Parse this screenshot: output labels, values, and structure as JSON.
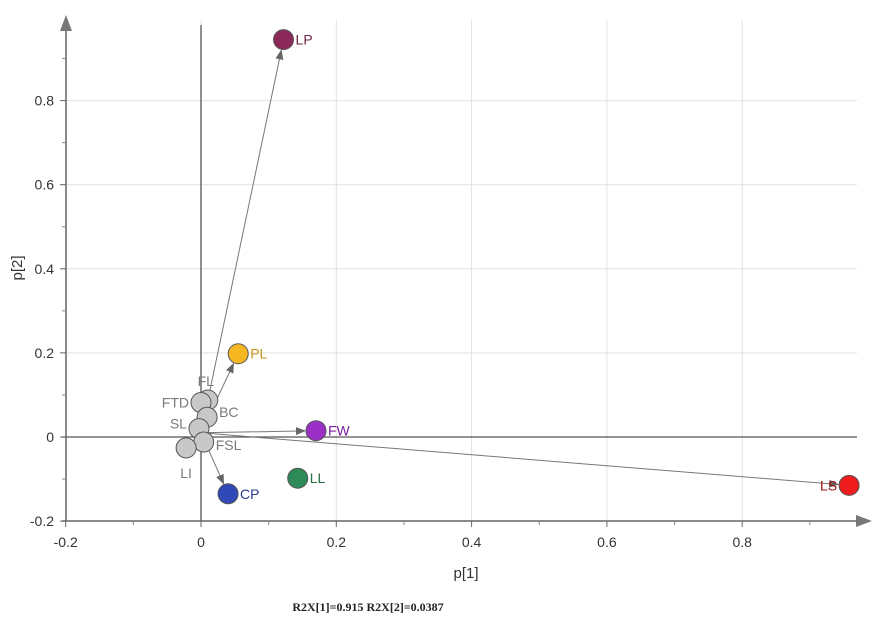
{
  "chart_data": {
    "type": "scatter",
    "title": "",
    "xlabel": "p[1]",
    "ylabel": "p[2]",
    "xlim": [
      -0.2,
      0.97
    ],
    "ylim": [
      -0.2,
      0.98
    ],
    "x_ticks": [
      -0.2,
      0,
      0.2,
      0.4,
      0.6,
      0.8
    ],
    "x_tick_labels": [
      "-0.2",
      "0",
      "0.2",
      "0.4",
      "0.6",
      "0.8"
    ],
    "y_ticks": [
      -0.2,
      0,
      0.2,
      0.4,
      0.6,
      0.8
    ],
    "y_tick_labels": [
      "-0.2",
      "0",
      "0.2",
      "0.4",
      "0.6",
      "0.8"
    ],
    "grid": true,
    "points": [
      {
        "label": "LP",
        "x": 0.122,
        "y": 0.945,
        "color": "#8b2a5a",
        "label_color": "#6b2244",
        "arrow": true
      },
      {
        "label": "PL",
        "x": 0.055,
        "y": 0.198,
        "color": "#f5b820",
        "label_color": "#c8941a",
        "arrow": true
      },
      {
        "label": "FL",
        "x": 0.01,
        "y": 0.088,
        "color": "#c8c8c8",
        "label_color": "#7a7a7a",
        "arrow": false
      },
      {
        "label": "FTD",
        "x": 0.0,
        "y": 0.082,
        "color": "#c8c8c8",
        "label_color": "#7a7a7a",
        "arrow": false
      },
      {
        "label": "BC",
        "x": 0.009,
        "y": 0.047,
        "color": "#c8c8c8",
        "label_color": "#7a7a7a",
        "arrow": false
      },
      {
        "label": "SL",
        "x": -0.003,
        "y": 0.02,
        "color": "#c8c8c8",
        "label_color": "#7a7a7a",
        "arrow": false
      },
      {
        "label": "FSL",
        "x": 0.004,
        "y": -0.012,
        "color": "#c8c8c8",
        "label_color": "#7a7a7a",
        "arrow": false
      },
      {
        "label": "LI",
        "x": -0.022,
        "y": -0.026,
        "color": "#c8c8c8",
        "label_color": "#7a7a7a",
        "arrow": false
      },
      {
        "label": "FW",
        "x": 0.17,
        "y": 0.015,
        "color": "#9b30c8",
        "label_color": "#7a1f9e",
        "arrow": true
      },
      {
        "label": "LL",
        "x": 0.143,
        "y": -0.098,
        "color": "#2e8b57",
        "label_color": "#2a6e48",
        "arrow": false
      },
      {
        "label": "CP",
        "x": 0.04,
        "y": -0.135,
        "color": "#3048b8",
        "label_color": "#2a3c8e",
        "arrow": true
      },
      {
        "label": "LS",
        "x": 0.958,
        "y": -0.115,
        "color": "#ee1c1c",
        "label_color": "#a01010",
        "arrow": true
      }
    ]
  },
  "footer": {
    "text": "R2X[1]=0.915   R2X[2]=0.0387"
  }
}
